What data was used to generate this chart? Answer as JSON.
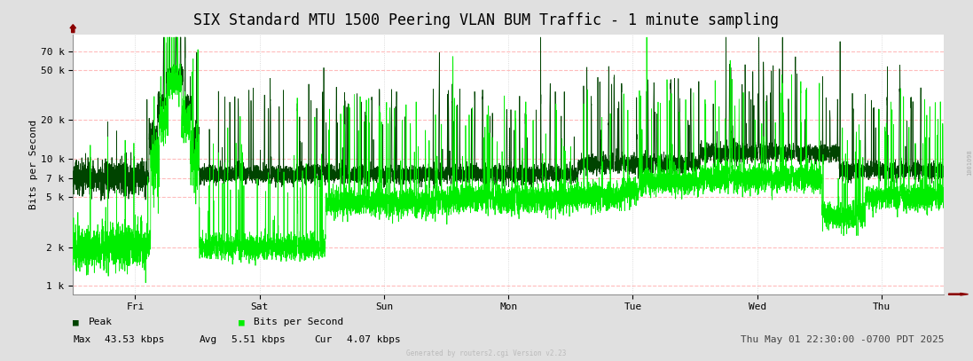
{
  "title": "SIX Standard MTU 1500 Peering VLAN BUM Traffic - 1 minute sampling",
  "ylabel": "Bits per Second",
  "yticks": [
    1000,
    2000,
    5000,
    7000,
    10000,
    20000,
    50000,
    70000
  ],
  "ytick_labels": [
    "1 k",
    "2 k",
    "5 k",
    "7 k",
    "10 k",
    "20 k",
    "50 k",
    "70 k"
  ],
  "ylim_low": 850,
  "ylim_high": 95000,
  "xtick_labels": [
    "Fri",
    "Sat",
    "Sun",
    "Mon",
    "Tue",
    "Wed",
    "Thu"
  ],
  "fig_bg_color": "#e0e0e0",
  "plot_bg_color": "#ffffff",
  "grid_color_h": "#ffbbbb",
  "grid_color_v": "#cccccc",
  "peak_color": "#004400",
  "bps_color": "#00ee00",
  "legend_peak": "Peak",
  "legend_bps": "Bits per Second",
  "stat_max": "43.53 kbps",
  "stat_avg": "5.51 kbps",
  "stat_cur": "4.07 kbps",
  "footer_center": "Generated by routers2.cgi Version v2.23",
  "footer_right": "Thu May 01 22:30:00 -0700 PDT 2025",
  "right_label": "1001098",
  "title_fontsize": 12,
  "axis_fontsize": 8,
  "legend_fontsize": 8,
  "n_points": 10080,
  "seed": 42
}
